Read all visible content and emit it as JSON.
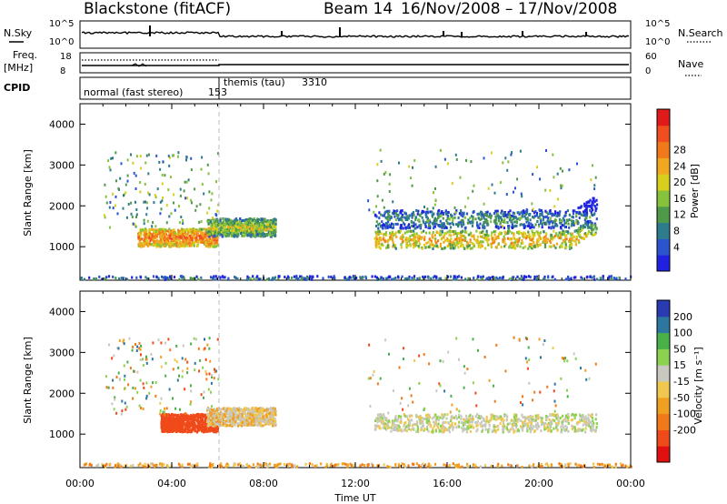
{
  "header": {
    "station": "Blackstone (fitACF)",
    "beam": "Beam 14",
    "date_range": "16/Nov/2008 – 17/Nov/2008"
  },
  "params": {
    "nsky_label": "N.Sky",
    "nsky_ticks": [
      "10^5",
      "10^0"
    ],
    "nsearch_label": "N.Search",
    "nsearch_ticks": [
      "10^5",
      "10^0"
    ],
    "freq_label": "Freq.",
    "freq_unit": "[MHz]",
    "freq_ticks": [
      "18",
      "8"
    ],
    "nave_label": "Nave",
    "nave_ticks": [
      "60",
      "0"
    ],
    "cpid_label": "CPID",
    "cpid_modes": [
      {
        "name": "normal (fast stereo)",
        "id": "153"
      },
      {
        "name": "themis (tau)",
        "id": "3310"
      }
    ]
  },
  "colors": {
    "power_scale": [
      "#2020e0",
      "#2a55cc",
      "#2e7b8c",
      "#4f9a4a",
      "#86c23c",
      "#d8cf1c",
      "#f0a820",
      "#f07a1a",
      "#f04e1e",
      "#e01a1a"
    ],
    "velocity_scale": [
      "#e01010",
      "#f04a1a",
      "#f07a1a",
      "#f0a020",
      "#f0c850",
      "#c8c8be",
      "#8cd150",
      "#4ab04a",
      "#2d76a0",
      "#2a3ab0"
    ]
  },
  "chart_data": [
    {
      "type": "heatmap",
      "title": "",
      "xlabel": "",
      "ylabel": "Slant Range [km]",
      "xlim": [
        0,
        24
      ],
      "ylim": [
        180,
        4500
      ],
      "x_tick_labels": [
        "00:00",
        "04:00",
        "08:00",
        "12:00",
        "16:00",
        "20:00",
        "00:00"
      ],
      "y_tick_labels": [
        "1000",
        "2000",
        "3000",
        "4000"
      ],
      "colorbar": {
        "label": "Power [dB]",
        "range": [
          0,
          32
        ],
        "tick_labels": [
          "4",
          "8",
          "12",
          "16",
          "20",
          "24",
          "28"
        ]
      },
      "echo_regions": [
        {
          "t_start": 2.5,
          "t_end": 6.0,
          "range_km": 1250,
          "value": 22
        },
        {
          "t_start": 5.5,
          "t_end": 8.5,
          "range_km": 1500,
          "value": 14
        },
        {
          "t_start": 12.8,
          "t_end": 22.5,
          "range_km": 1200,
          "value": 18
        },
        {
          "t_start": 12.8,
          "t_end": 22.5,
          "range_km": 1700,
          "value": 8
        },
        {
          "t_start": 0.0,
          "t_end": 24.0,
          "range_km": 250,
          "value": 6
        }
      ]
    },
    {
      "type": "heatmap",
      "title": "",
      "xlabel": "Time UT",
      "ylabel": "Slant Range [km]",
      "xlim": [
        0,
        24
      ],
      "ylim": [
        180,
        4500
      ],
      "x_tick_labels": [
        "00:00",
        "04:00",
        "08:00",
        "12:00",
        "16:00",
        "20:00",
        "00:00"
      ],
      "y_tick_labels": [
        "1000",
        "2000",
        "3000",
        "4000"
      ],
      "colorbar": {
        "label": "Velocity [m s⁻¹]",
        "range": [
          -250,
          250
        ],
        "tick_labels": [
          "200",
          "100",
          "50",
          "15",
          "-15",
          "-50",
          "-100",
          "-200"
        ]
      },
      "echo_regions": [
        {
          "t_start": 3.5,
          "t_end": 6.0,
          "range_km": 1300,
          "value": -150
        },
        {
          "t_start": 5.5,
          "t_end": 8.5,
          "range_km": 1450,
          "value": -20
        },
        {
          "t_start": 12.8,
          "t_end": 22.5,
          "range_km": 1300,
          "value": 0
        },
        {
          "t_start": 0.0,
          "t_end": 24.0,
          "range_km": 250,
          "value": -40
        }
      ]
    }
  ]
}
